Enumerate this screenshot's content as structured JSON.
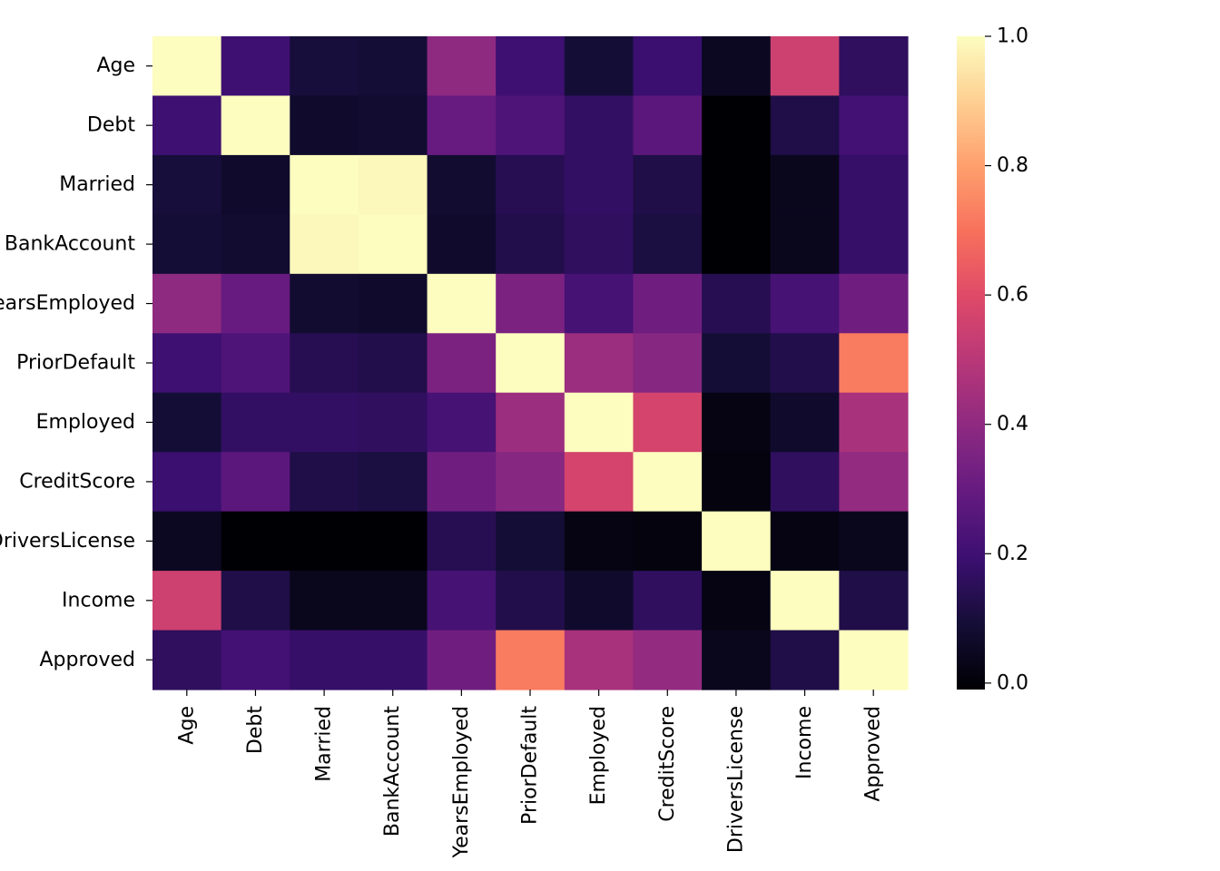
{
  "chart_data": {
    "type": "heatmap",
    "title": "",
    "colormap": "magma",
    "labels": [
      "Age",
      "Debt",
      "Married",
      "BankAccount",
      "YearsEmployed",
      "PriorDefault",
      "Employed",
      "CreditScore",
      "DriversLicense",
      "Income",
      "Approved"
    ],
    "values": [
      [
        1.0,
        0.2,
        0.1,
        0.09,
        0.4,
        0.2,
        0.09,
        0.19,
        0.05,
        0.55,
        0.16
      ],
      [
        0.2,
        1.0,
        0.07,
        0.08,
        0.3,
        0.24,
        0.17,
        0.27,
        -0.01,
        0.12,
        0.21
      ],
      [
        0.1,
        0.07,
        1.0,
        0.99,
        0.08,
        0.14,
        0.17,
        0.12,
        -0.01,
        0.04,
        0.18
      ],
      [
        0.09,
        0.08,
        0.99,
        1.0,
        0.07,
        0.13,
        0.16,
        0.11,
        -0.01,
        0.04,
        0.18
      ],
      [
        0.4,
        0.3,
        0.08,
        0.07,
        1.0,
        0.35,
        0.22,
        0.32,
        0.14,
        0.22,
        0.32
      ],
      [
        0.2,
        0.24,
        0.14,
        0.13,
        0.35,
        1.0,
        0.43,
        0.38,
        0.09,
        0.13,
        0.72
      ],
      [
        0.09,
        0.17,
        0.17,
        0.16,
        0.22,
        0.43,
        1.0,
        0.57,
        0.02,
        0.07,
        0.46
      ],
      [
        0.19,
        0.27,
        0.12,
        0.11,
        0.32,
        0.38,
        0.57,
        1.0,
        0.01,
        0.16,
        0.41
      ],
      [
        0.05,
        -0.01,
        -0.01,
        -0.01,
        0.14,
        0.09,
        0.02,
        0.01,
        1.0,
        0.02,
        0.04
      ],
      [
        0.55,
        0.12,
        0.04,
        0.04,
        0.22,
        0.13,
        0.07,
        0.16,
        0.02,
        1.0,
        0.12
      ],
      [
        0.16,
        0.21,
        0.18,
        0.18,
        0.32,
        0.72,
        0.46,
        0.41,
        0.04,
        0.12,
        1.0
      ]
    ],
    "vmin": -0.01,
    "vmax": 1.0,
    "colorbar_ticks": [
      "0.0",
      "0.2",
      "0.4",
      "0.6",
      "0.8",
      "1.0"
    ],
    "colorbar_tick_values": [
      0,
      0.2,
      0.4,
      0.6,
      0.8,
      1.0
    ]
  }
}
